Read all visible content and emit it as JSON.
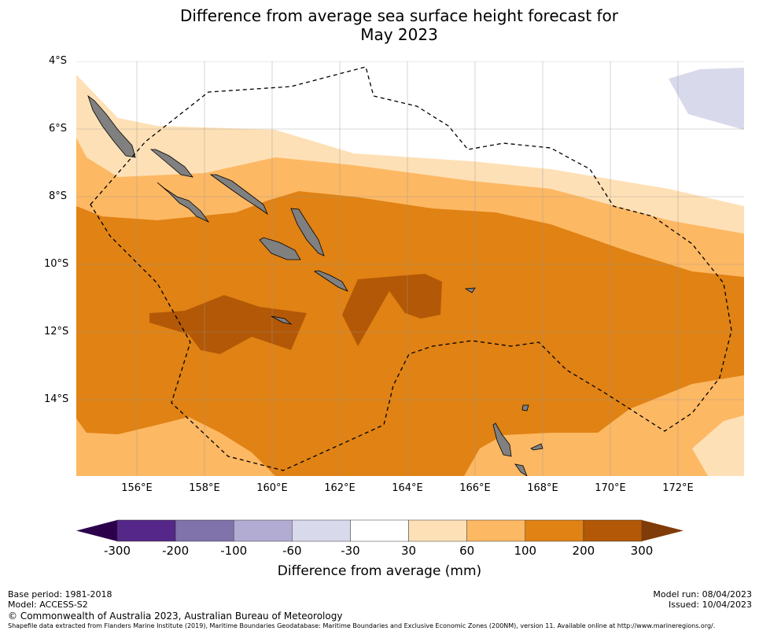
{
  "title_line1": "Difference from average sea surface height forecast for",
  "title_line2": "May 2023",
  "lat_labels": [
    "4°S",
    "6°S",
    "8°S",
    "10°S",
    "12°S",
    "14°S"
  ],
  "lon_labels": [
    "156°E",
    "158°E",
    "160°E",
    "162°E",
    "164°E",
    "166°E",
    "168°E",
    "170°E",
    "172°E"
  ],
  "colorbar": {
    "ticks": [
      "-300",
      "-200",
      "-100",
      "-60",
      "-30",
      "30",
      "60",
      "100",
      "200",
      "300"
    ],
    "colors": [
      "#2d004b",
      "#542788",
      "#8073ac",
      "#b2abd2",
      "#d8daeb",
      "#ffffff",
      "#fee0b6",
      "#fdb863",
      "#e08214",
      "#b35806",
      "#7f3b08"
    ],
    "label": "Difference from average (mm)"
  },
  "footer": {
    "base_period": "Base period: 1981-2018",
    "model": "Model: ACCESS-S2",
    "model_run": "Model run: 08/04/2023",
    "issued": "Issued: 10/04/2023",
    "copyright": "© Commonwealth of Australia 2023, Australian Bureau of Meteorology",
    "shapefile": "Shapefile data extracted from Flanders Marine Institute (2019), Maritime Boundaries Geodatabase: Maritime Boundaries and Exclusive Economic Zones (200NM), version 11. Available online at http://www.marineregions.org/."
  }
}
